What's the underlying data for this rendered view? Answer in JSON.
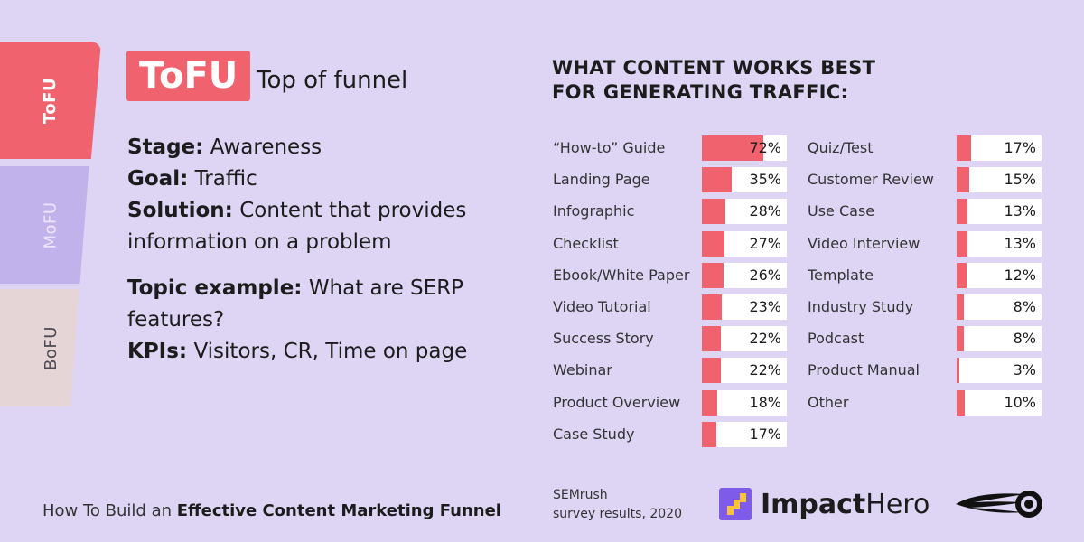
{
  "funnel": {
    "tabs": [
      {
        "label": "ToFU",
        "active": true,
        "color": "#f0626d"
      },
      {
        "label": "MoFU",
        "active": false,
        "color": "#c2b2ec"
      },
      {
        "label": "BoFU",
        "active": false,
        "color": "#e5d5d6"
      }
    ]
  },
  "stage_info": {
    "badge": "ToFU",
    "subtitle": "Top of funnel",
    "stage_key": "Stage:",
    "stage_value": "Awareness",
    "goal_key": "Goal:",
    "goal_value": "Traffic",
    "solution_key": "Solution:",
    "solution_value": "Content that provides information on a problem",
    "topic_key": "Topic example:",
    "topic_value": "What are SERP features?",
    "kpis_key": "KPIs:",
    "kpis_value": "Visitors, CR, Time on page"
  },
  "footer": {
    "prefix": "How To Build an ",
    "bold": "Effective Content Marketing Funnel",
    "source_line1": "SEMrush",
    "source_line2": "survey results, 2020"
  },
  "logos": {
    "impact": "Impact",
    "hero": "Hero"
  },
  "chart_data": {
    "type": "bar",
    "title_line1": "WHAT CONTENT WORKS BEST",
    "title_line2": "FOR GENERATING TRAFFIC:",
    "unit": "%",
    "ylim": [
      0,
      100
    ],
    "bar_color": "#f0626d",
    "columns": [
      {
        "categories": [
          "“How-to” Guide",
          "Landing Page",
          "Infographic",
          "Checklist",
          "Ebook/White Paper",
          "Video Tutorial",
          "Success Story",
          "Webinar",
          "Product Overview",
          "Case Study"
        ],
        "values": [
          72,
          35,
          28,
          27,
          26,
          23,
          22,
          22,
          18,
          17
        ]
      },
      {
        "categories": [
          "Quiz/Test",
          "Customer Review",
          "Use Case",
          "Video Interview",
          "Template",
          "Industry Study",
          "Podcast",
          "Product Manual",
          "Other"
        ],
        "values": [
          17,
          15,
          13,
          13,
          12,
          8,
          8,
          3,
          10
        ]
      }
    ]
  }
}
